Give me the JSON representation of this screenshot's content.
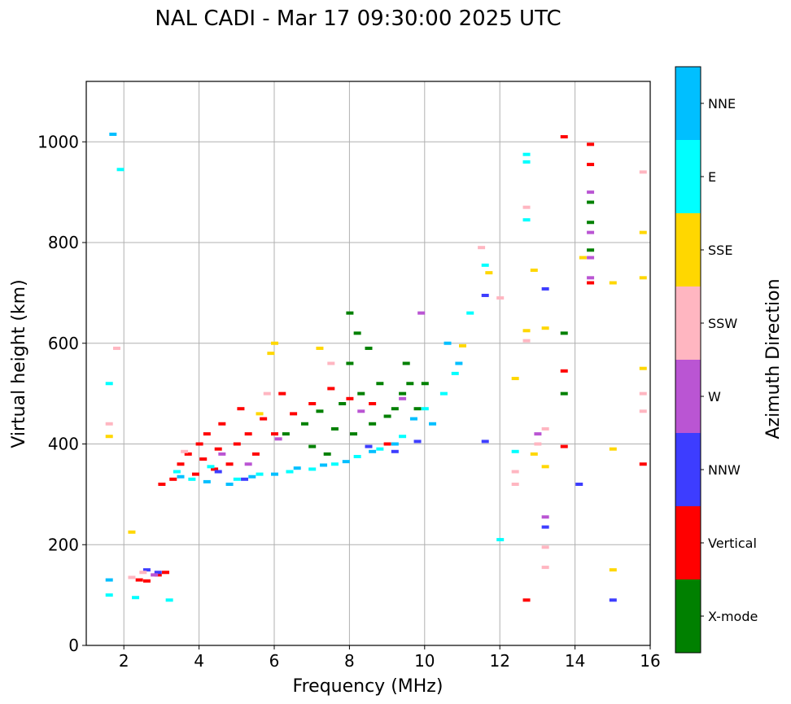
{
  "chart_data": {
    "type": "scatter",
    "title": "NAL CADI - Mar 17 09:30:00 2025 UTC",
    "xlabel": "Frequency (MHz)",
    "ylabel": "Virtual height (km)",
    "xlim": [
      1,
      16
    ],
    "ylim": [
      0,
      1120
    ],
    "xticks": [
      2,
      4,
      6,
      8,
      10,
      12,
      14,
      16
    ],
    "yticks": [
      0,
      200,
      400,
      600,
      800,
      1000
    ],
    "grid": true,
    "colorbar": {
      "label": "Azimuth Direction",
      "categories": [
        {
          "name": "X-mode",
          "color": "#008000"
        },
        {
          "name": "Vertical",
          "color": "#ff0000"
        },
        {
          "name": "NNW",
          "color": "#3d3dff"
        },
        {
          "name": "W",
          "color": "#ba55d3"
        },
        {
          "name": "SSW",
          "color": "#ffb6c1"
        },
        {
          "name": "SSE",
          "color": "#ffd700"
        },
        {
          "name": "E",
          "color": "#00ffff"
        },
        {
          "name": "NNE",
          "color": "#00bfff"
        }
      ]
    },
    "series": [
      {
        "name": "X-mode",
        "points": [
          [
            6.3,
            420
          ],
          [
            6.8,
            440
          ],
          [
            7.0,
            395
          ],
          [
            7.2,
            465
          ],
          [
            7.4,
            380
          ],
          [
            7.6,
            430
          ],
          [
            7.8,
            480
          ],
          [
            8.0,
            560
          ],
          [
            8.1,
            420
          ],
          [
            8.3,
            500
          ],
          [
            8.5,
            590
          ],
          [
            8.6,
            440
          ],
          [
            8.8,
            520
          ],
          [
            9.0,
            455
          ],
          [
            9.2,
            470
          ],
          [
            9.4,
            500
          ],
          [
            9.5,
            560
          ],
          [
            9.6,
            520
          ],
          [
            9.8,
            470
          ],
          [
            10.0,
            520
          ],
          [
            8.2,
            620
          ],
          [
            8.0,
            660
          ],
          [
            13.7,
            620
          ],
          [
            13.7,
            500
          ],
          [
            14.4,
            880
          ],
          [
            14.4,
            840
          ],
          [
            14.4,
            785
          ]
        ]
      },
      {
        "name": "Vertical",
        "points": [
          [
            2.4,
            130
          ],
          [
            2.6,
            128
          ],
          [
            2.9,
            140
          ],
          [
            3.1,
            145
          ],
          [
            3.0,
            320
          ],
          [
            3.3,
            330
          ],
          [
            3.5,
            360
          ],
          [
            3.7,
            380
          ],
          [
            3.9,
            340
          ],
          [
            4.0,
            400
          ],
          [
            4.1,
            370
          ],
          [
            4.2,
            420
          ],
          [
            4.4,
            350
          ],
          [
            4.5,
            390
          ],
          [
            4.6,
            440
          ],
          [
            4.8,
            360
          ],
          [
            5.0,
            400
          ],
          [
            5.1,
            470
          ],
          [
            5.3,
            420
          ],
          [
            5.5,
            380
          ],
          [
            5.7,
            450
          ],
          [
            6.0,
            420
          ],
          [
            6.2,
            500
          ],
          [
            6.5,
            460
          ],
          [
            7.0,
            480
          ],
          [
            7.5,
            510
          ],
          [
            8.0,
            490
          ],
          [
            8.6,
            480
          ],
          [
            9.0,
            400
          ],
          [
            12.7,
            90
          ],
          [
            13.7,
            395
          ],
          [
            13.7,
            545
          ],
          [
            13.7,
            1010
          ],
          [
            14.4,
            995
          ],
          [
            14.4,
            955
          ],
          [
            14.4,
            720
          ],
          [
            15.8,
            360
          ]
        ]
      },
      {
        "name": "NNW",
        "points": [
          [
            2.6,
            150
          ],
          [
            2.9,
            145
          ],
          [
            4.5,
            345
          ],
          [
            5.2,
            330
          ],
          [
            8.5,
            395
          ],
          [
            9.2,
            385
          ],
          [
            9.8,
            405
          ],
          [
            11.6,
            405
          ],
          [
            13.2,
            708
          ],
          [
            13.2,
            235
          ],
          [
            14.1,
            320
          ],
          [
            15.0,
            90
          ],
          [
            11.6,
            695
          ]
        ]
      },
      {
        "name": "W",
        "points": [
          [
            2.8,
            140
          ],
          [
            4.6,
            380
          ],
          [
            5.3,
            360
          ],
          [
            6.1,
            410
          ],
          [
            8.3,
            465
          ],
          [
            9.4,
            490
          ],
          [
            9.9,
            660
          ],
          [
            13.0,
            420
          ],
          [
            13.2,
            255
          ],
          [
            14.4,
            900
          ],
          [
            14.4,
            820
          ],
          [
            14.4,
            770
          ],
          [
            14.4,
            730
          ]
        ]
      },
      {
        "name": "SSW",
        "points": [
          [
            1.6,
            440
          ],
          [
            1.8,
            590
          ],
          [
            2.2,
            135
          ],
          [
            2.5,
            145
          ],
          [
            3.6,
            385
          ],
          [
            5.8,
            500
          ],
          [
            7.5,
            560
          ],
          [
            11.5,
            790
          ],
          [
            12.0,
            690
          ],
          [
            12.4,
            320
          ],
          [
            12.4,
            345
          ],
          [
            12.7,
            605
          ],
          [
            12.7,
            870
          ],
          [
            13.2,
            430
          ],
          [
            13.2,
            195
          ],
          [
            13.2,
            155
          ],
          [
            13.0,
            400
          ],
          [
            15.8,
            940
          ],
          [
            15.8,
            500
          ],
          [
            15.8,
            465
          ]
        ]
      },
      {
        "name": "SSE",
        "points": [
          [
            1.6,
            415
          ],
          [
            2.2,
            225
          ],
          [
            5.6,
            460
          ],
          [
            5.9,
            580
          ],
          [
            6.0,
            600
          ],
          [
            7.2,
            590
          ],
          [
            11.0,
            595
          ],
          [
            11.7,
            740
          ],
          [
            12.4,
            530
          ],
          [
            12.7,
            625
          ],
          [
            12.9,
            745
          ],
          [
            12.9,
            380
          ],
          [
            13.2,
            630
          ],
          [
            13.2,
            355
          ],
          [
            14.2,
            770
          ],
          [
            15.0,
            720
          ],
          [
            15.0,
            390
          ],
          [
            15.0,
            150
          ],
          [
            15.8,
            820
          ],
          [
            15.8,
            730
          ],
          [
            15.8,
            550
          ]
        ]
      },
      {
        "name": "E",
        "points": [
          [
            1.6,
            100
          ],
          [
            1.6,
            520
          ],
          [
            1.9,
            945
          ],
          [
            2.3,
            95
          ],
          [
            3.2,
            90
          ],
          [
            3.4,
            345
          ],
          [
            3.8,
            330
          ],
          [
            4.3,
            355
          ],
          [
            5.0,
            330
          ],
          [
            5.6,
            340
          ],
          [
            6.4,
            345
          ],
          [
            7.0,
            350
          ],
          [
            7.6,
            360
          ],
          [
            8.2,
            375
          ],
          [
            8.8,
            390
          ],
          [
            9.4,
            415
          ],
          [
            10.0,
            470
          ],
          [
            10.5,
            500
          ],
          [
            10.8,
            540
          ],
          [
            11.2,
            660
          ],
          [
            11.6,
            755
          ],
          [
            12.0,
            210
          ],
          [
            12.4,
            385
          ],
          [
            12.7,
            960
          ],
          [
            12.7,
            975
          ],
          [
            12.7,
            845
          ]
        ]
      },
      {
        "name": "NNE",
        "points": [
          [
            1.7,
            1015
          ],
          [
            1.6,
            130
          ],
          [
            3.5,
            335
          ],
          [
            4.2,
            325
          ],
          [
            4.8,
            320
          ],
          [
            5.4,
            335
          ],
          [
            6.0,
            340
          ],
          [
            6.6,
            352
          ],
          [
            7.3,
            358
          ],
          [
            7.9,
            365
          ],
          [
            8.6,
            385
          ],
          [
            9.2,
            400
          ],
          [
            9.7,
            450
          ],
          [
            10.2,
            440
          ],
          [
            10.6,
            600
          ],
          [
            10.9,
            560
          ]
        ]
      }
    ]
  }
}
